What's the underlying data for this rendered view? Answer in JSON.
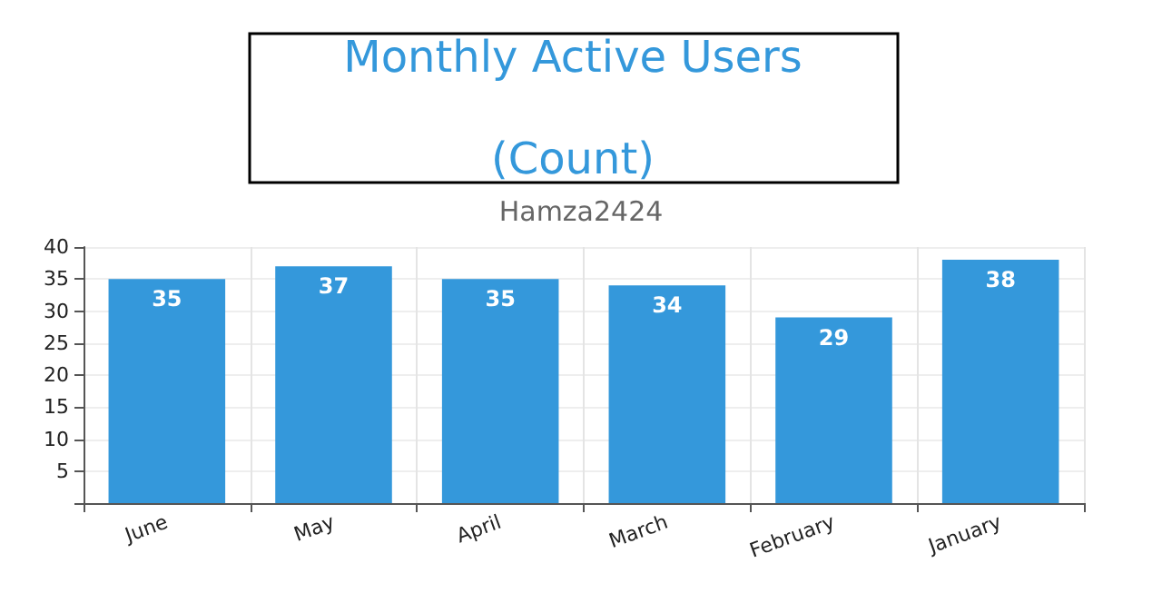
{
  "chart_data": {
    "type": "bar",
    "title": "Monthly Active Users\n\n(Count)",
    "subtitle": "Hamza2424",
    "categories": [
      "June",
      "May",
      "April",
      "March",
      "February",
      "January"
    ],
    "values": [
      35,
      37,
      35,
      34,
      29,
      38
    ],
    "color": "#3498db",
    "ylim": [
      0,
      40
    ],
    "yticks": [
      {
        "value": 0,
        "label": null
      },
      5,
      10,
      15,
      20,
      25,
      30,
      35,
      40
    ],
    "grid": true,
    "data_labels": true
  }
}
